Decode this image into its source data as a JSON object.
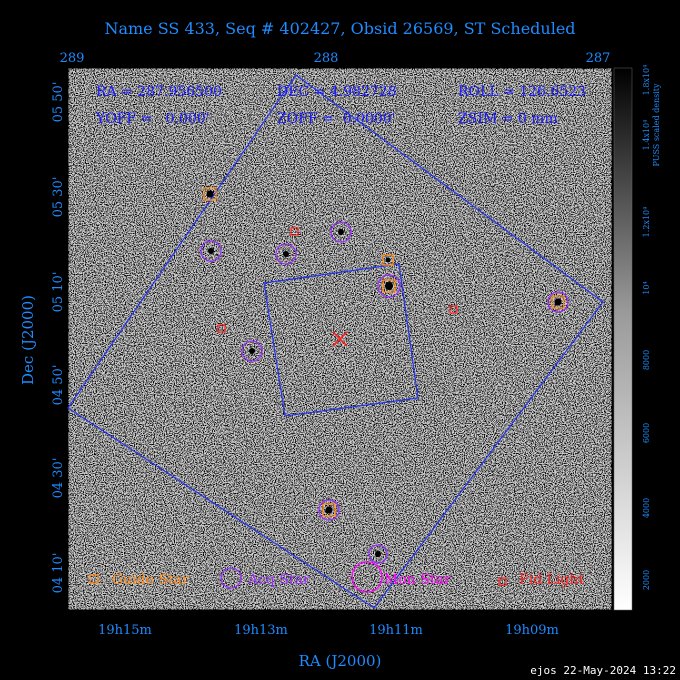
{
  "title": "Name SS 433, Seq # 402427, Obsid 26569, ST Scheduled",
  "top_axis": {
    "ticks": [
      "289",
      "288",
      "287"
    ]
  },
  "info": {
    "ra": "RA = 287.956500",
    "dec": "DEC = 4.982728",
    "roll": "ROLL = 126.6523",
    "yoff": "YOFF =   0.000'",
    "zoff": "ZOFF =  0.0000'",
    "zsim": "ZSIM = 0 mm"
  },
  "y_axis": {
    "label": "Dec (J2000)",
    "ticks": [
      "05 50'",
      "05 30'",
      "05 10'",
      "04 50'",
      "04 30'",
      "04 10'"
    ]
  },
  "x_axis": {
    "label": "RA (J2000)",
    "ticks": [
      "19h15m",
      "19h13m",
      "19h11m",
      "19h09m"
    ]
  },
  "colorbar": {
    "title": "PUSS scaled density",
    "ticks": [
      "1.8x10⁴",
      "1.4x10⁴",
      "1.2x10⁴",
      "10⁴",
      "8000",
      "6000",
      "4000",
      "2000"
    ]
  },
  "legend": {
    "guide": "Guide Star",
    "acq": "Acq Star",
    "mon": "Mon Star",
    "fid": "Fid Light"
  },
  "footer": "ejos 22-May-2024 13:22",
  "colors": {
    "label_blue": "#1e8cff",
    "info_blue": "#1c1cff",
    "field_line": "#2233ee",
    "guide": "#ff8c1a",
    "acq": "#9b30ff",
    "mon": "#ff00ff",
    "fid": "#ff2020"
  }
}
